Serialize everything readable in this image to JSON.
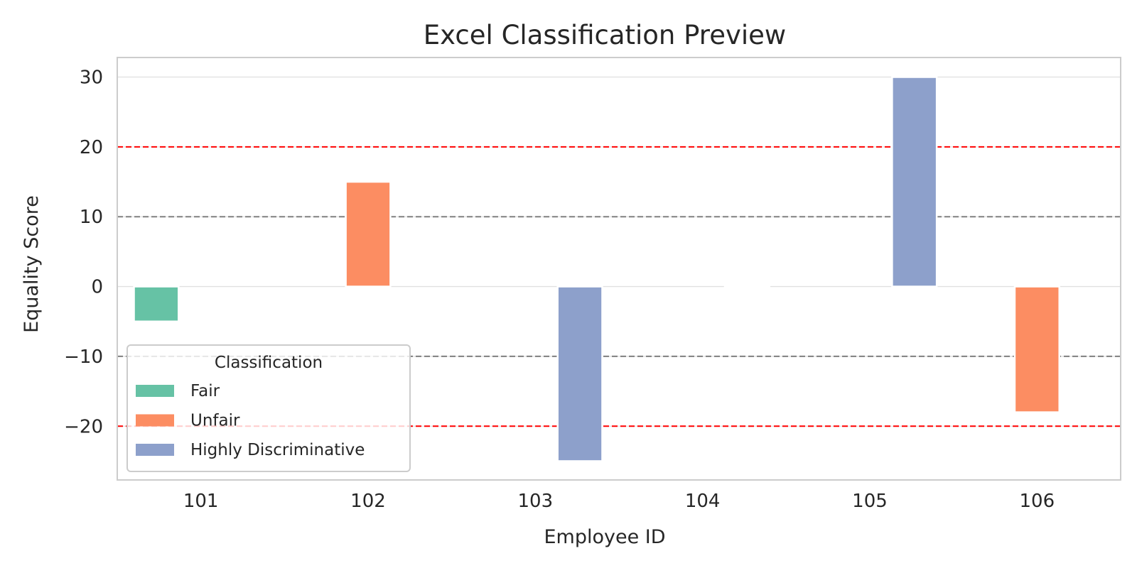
{
  "chart_data": {
    "type": "bar",
    "title": "Excel Classification Preview",
    "xlabel": "Employee ID",
    "ylabel": "Equality Score",
    "categories": [
      "101",
      "102",
      "103",
      "104",
      "105",
      "106"
    ],
    "ylim": [
      -27.7,
      32.8
    ],
    "yticks": [
      -20,
      -10,
      0,
      10,
      20,
      30
    ],
    "yticks_display": [
      "−20",
      "−10",
      "0",
      "10",
      "20",
      "30"
    ],
    "grid": true,
    "hue_order": [
      "Fair",
      "Unfair",
      "Highly Discriminative"
    ],
    "series": [
      {
        "name": "Fair",
        "color": "#66c2a5",
        "values": [
          -5,
          null,
          null,
          null,
          null,
          null
        ]
      },
      {
        "name": "Unfair",
        "color": "#fc8d62",
        "values": [
          null,
          15,
          null,
          null,
          null,
          -18
        ]
      },
      {
        "name": "Highly Discriminative",
        "color": "#8da0cb",
        "values": [
          null,
          null,
          -25,
          0,
          30,
          null
        ]
      }
    ],
    "reference_lines": [
      {
        "y": 20,
        "color": "#ff0000",
        "style": "dashed"
      },
      {
        "y": -20,
        "color": "#ff0000",
        "style": "dashed"
      },
      {
        "y": 10,
        "color": "#808080",
        "style": "dashed"
      },
      {
        "y": -10,
        "color": "#808080",
        "style": "dashed"
      }
    ],
    "legend": {
      "title": "Classification",
      "placement": "lower-left",
      "entries": [
        "Fair",
        "Unfair",
        "Highly Discriminative"
      ]
    }
  }
}
